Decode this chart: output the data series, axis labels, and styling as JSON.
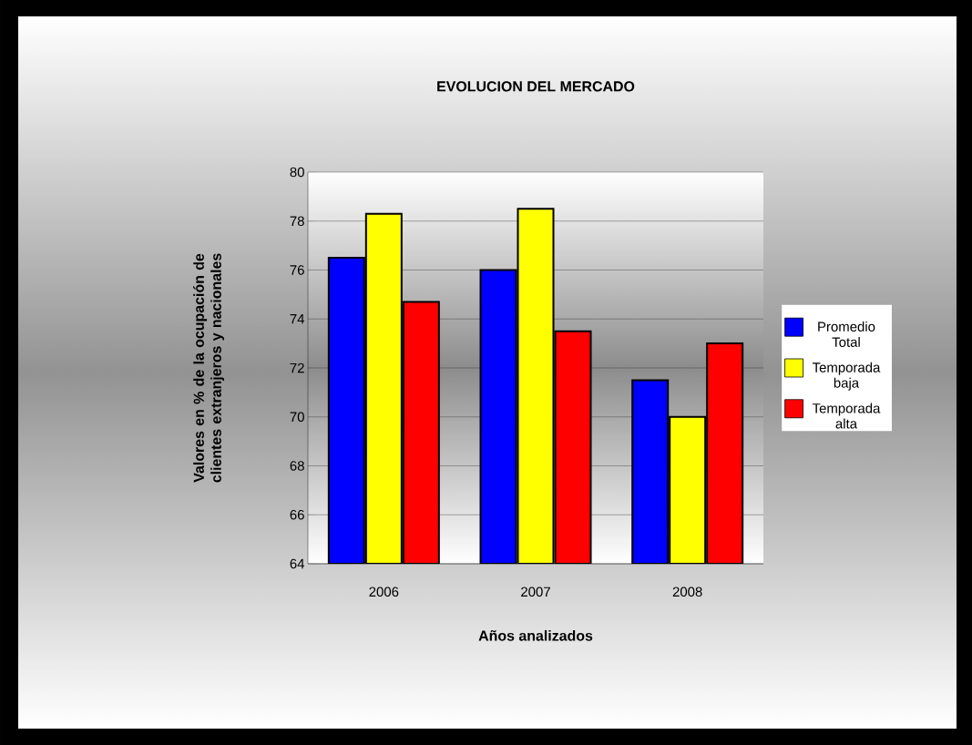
{
  "chart_data": {
    "type": "bar",
    "title": "EVOLUCION DEL MERCADO",
    "xlabel": "Años analizados",
    "ylabel": "Valores en % de la ocupación de clientes extranjeros y nacionales",
    "categories": [
      "2006",
      "2007",
      "2008"
    ],
    "series": [
      {
        "name": "Promedio Total",
        "color": "#0000ff",
        "values": [
          76.5,
          76.0,
          71.5
        ]
      },
      {
        "name": "Temporada baja",
        "color": "#ffff00",
        "values": [
          78.3,
          78.5,
          70.0
        ]
      },
      {
        "name": "Temporada alta",
        "color": "#ff0000",
        "values": [
          74.7,
          73.5,
          73.0
        ]
      }
    ],
    "ylim": [
      64,
      80
    ],
    "yticks": [
      64,
      66,
      68,
      70,
      72,
      74,
      76,
      78,
      80
    ],
    "grid": "y",
    "legend": "right"
  }
}
